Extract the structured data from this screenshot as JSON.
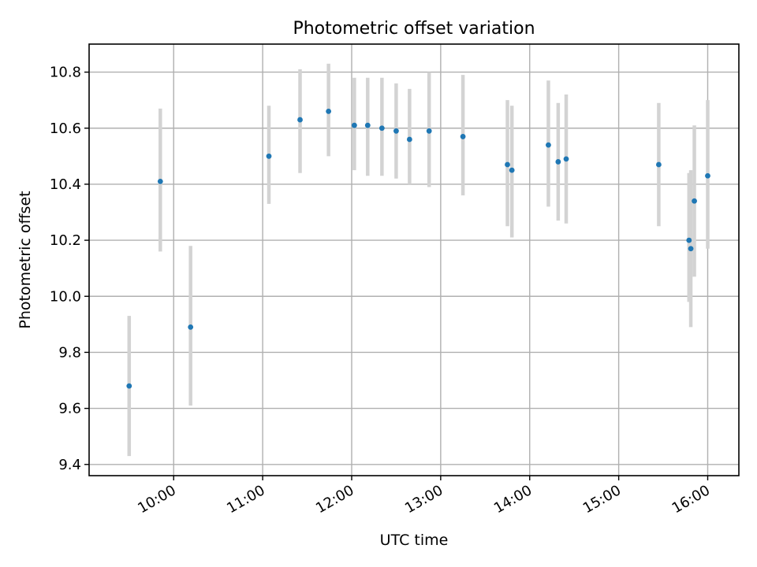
{
  "chart_data": {
    "type": "scatter",
    "title": "Photometric offset variation",
    "xlabel": "UTC time",
    "ylabel": "Photometric offset",
    "x_unit": "hours UTC",
    "xlim": [
      9.05,
      16.35
    ],
    "ylim": [
      9.36,
      10.9
    ],
    "x_ticks": [
      10,
      11,
      12,
      13,
      14,
      15,
      16
    ],
    "x_tick_labels": [
      "10:00",
      "11:00",
      "12:00",
      "13:00",
      "14:00",
      "15:00",
      "16:00"
    ],
    "y_ticks": [
      9.4,
      9.6,
      9.8,
      10.0,
      10.2,
      10.4,
      10.6,
      10.8
    ],
    "y_tick_labels": [
      "9.4",
      "9.6",
      "9.8",
      "10.0",
      "10.2",
      "10.4",
      "10.6",
      "10.8"
    ],
    "grid": true,
    "point_color": "#1f77b4",
    "errorbar_color": "#d3d3d3",
    "series": [
      {
        "points": [
          {
            "x": 9.5,
            "y": 9.68,
            "ylo": 9.43,
            "yhi": 9.93
          },
          {
            "x": 9.85,
            "y": 10.41,
            "ylo": 10.16,
            "yhi": 10.67
          },
          {
            "x": 10.19,
            "y": 9.89,
            "ylo": 9.61,
            "yhi": 10.18
          },
          {
            "x": 11.07,
            "y": 10.5,
            "ylo": 10.33,
            "yhi": 10.68
          },
          {
            "x": 11.42,
            "y": 10.63,
            "ylo": 10.44,
            "yhi": 10.81
          },
          {
            "x": 11.74,
            "y": 10.66,
            "ylo": 10.5,
            "yhi": 10.83
          },
          {
            "x": 12.03,
            "y": 10.61,
            "ylo": 10.45,
            "yhi": 10.78
          },
          {
            "x": 12.18,
            "y": 10.61,
            "ylo": 10.43,
            "yhi": 10.78
          },
          {
            "x": 12.34,
            "y": 10.6,
            "ylo": 10.43,
            "yhi": 10.78
          },
          {
            "x": 12.5,
            "y": 10.59,
            "ylo": 10.42,
            "yhi": 10.76
          },
          {
            "x": 12.65,
            "y": 10.56,
            "ylo": 10.4,
            "yhi": 10.74
          },
          {
            "x": 12.87,
            "y": 10.59,
            "ylo": 10.39,
            "yhi": 10.8
          },
          {
            "x": 13.25,
            "y": 10.57,
            "ylo": 10.36,
            "yhi": 10.79
          },
          {
            "x": 13.75,
            "y": 10.47,
            "ylo": 10.25,
            "yhi": 10.7
          },
          {
            "x": 13.8,
            "y": 10.45,
            "ylo": 10.21,
            "yhi": 10.68
          },
          {
            "x": 14.21,
            "y": 10.54,
            "ylo": 10.32,
            "yhi": 10.77
          },
          {
            "x": 14.32,
            "y": 10.48,
            "ylo": 10.27,
            "yhi": 10.69
          },
          {
            "x": 14.41,
            "y": 10.49,
            "ylo": 10.26,
            "yhi": 10.72
          },
          {
            "x": 15.45,
            "y": 10.47,
            "ylo": 10.25,
            "yhi": 10.69
          },
          {
            "x": 15.79,
            "y": 10.2,
            "ylo": 9.98,
            "yhi": 10.44
          },
          {
            "x": 15.81,
            "y": 10.17,
            "ylo": 9.89,
            "yhi": 10.45
          },
          {
            "x": 15.85,
            "y": 10.34,
            "ylo": 10.07,
            "yhi": 10.61
          },
          {
            "x": 16.0,
            "y": 10.43,
            "ylo": 10.17,
            "yhi": 10.7
          }
        ]
      }
    ]
  }
}
